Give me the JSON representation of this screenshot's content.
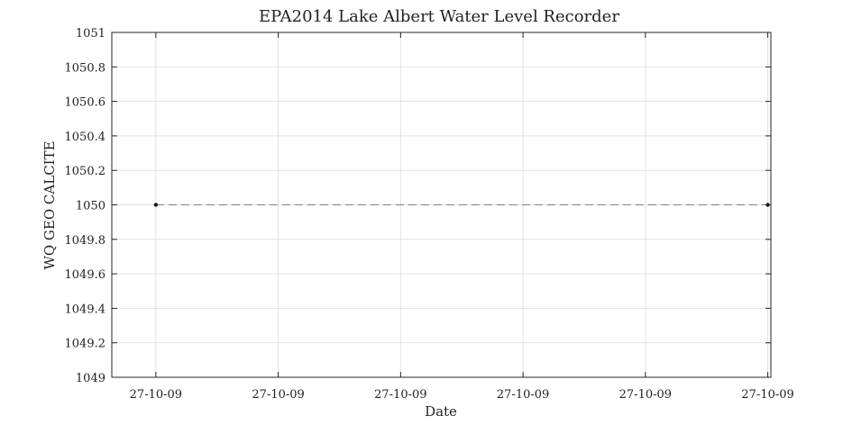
{
  "chart_data": {
    "type": "line",
    "title": "EPA2014 Lake Albert Water Level Recorder",
    "xlabel": "Date",
    "ylabel": "WQ GEO CALCITE",
    "ylim": [
      1049,
      1051
    ],
    "yticks": [
      1049,
      1049.2,
      1049.4,
      1049.6,
      1049.8,
      1050,
      1050.2,
      1050.4,
      1050.6,
      1050.8,
      1051
    ],
    "ytick_labels": [
      "1049",
      "1049.2",
      "1049.4",
      "1049.6",
      "1049.8",
      "1050",
      "1050.2",
      "1050.4",
      "1050.6",
      "1050.8",
      "1051"
    ],
    "xticks": [
      0,
      0.2,
      0.4,
      0.6,
      0.8,
      1.0
    ],
    "xlim": [
      -0.072,
      1.005
    ],
    "xtick_labels": [
      "27-10-09",
      "27-10-09",
      "27-10-09",
      "27-10-09",
      "27-10-09",
      "27-10-09"
    ],
    "grid": true,
    "series": [
      {
        "x": [
          0,
          1.0
        ],
        "y": [
          1050,
          1050
        ],
        "line_style": "dashed",
        "marker": "dot",
        "color": "#7f7f7f"
      }
    ]
  }
}
